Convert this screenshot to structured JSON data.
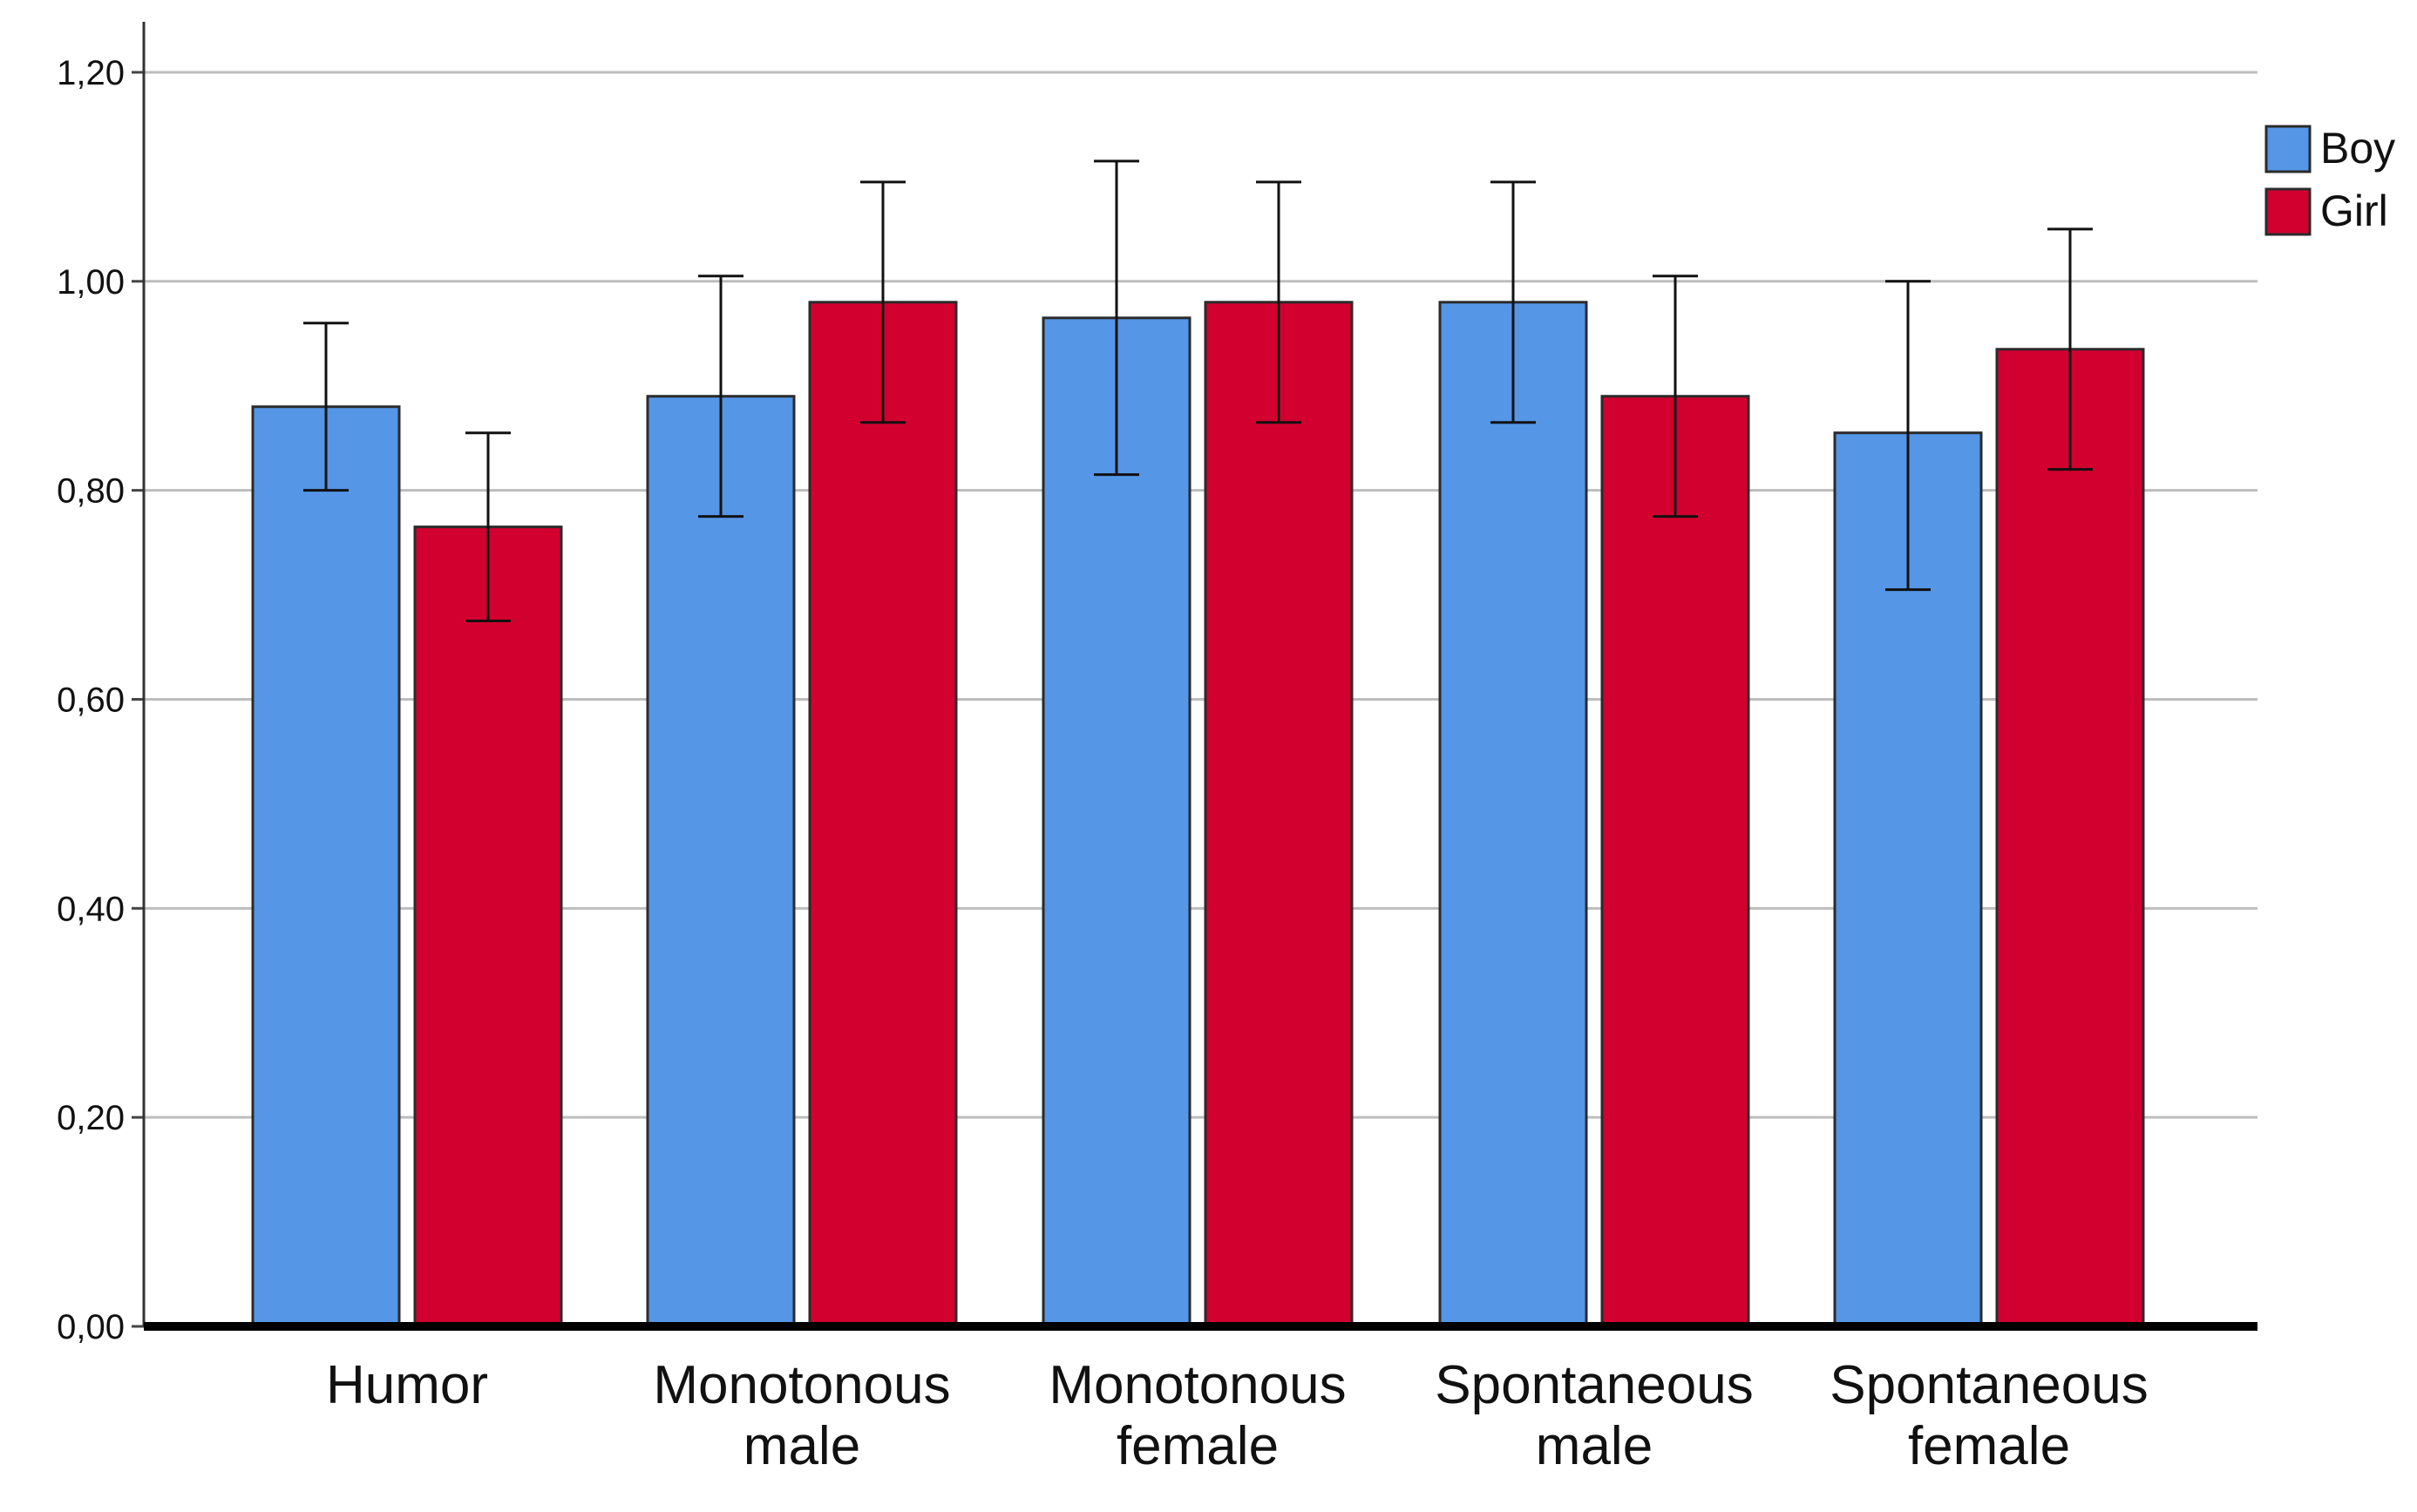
{
  "chart_data": {
    "type": "bar",
    "categories": [
      [
        "Humor"
      ],
      [
        "Monotonous",
        "male"
      ],
      [
        "Monotonous",
        "female"
      ],
      [
        "Spontaneous",
        "male"
      ],
      [
        "Spontaneous",
        "female"
      ]
    ],
    "series": [
      {
        "name": "Boy",
        "color": "#5596e6",
        "values": [
          0.88,
          0.89,
          0.965,
          0.98,
          0.855
        ],
        "error_low": [
          0.8,
          0.775,
          0.815,
          0.865,
          0.705
        ],
        "error_high": [
          0.96,
          1.005,
          1.115,
          1.095,
          1.0
        ]
      },
      {
        "name": "Girl",
        "color": "#d2002f",
        "values": [
          0.765,
          0.98,
          0.98,
          0.89,
          0.935
        ],
        "error_low": [
          0.675,
          0.865,
          0.865,
          0.775,
          0.82
        ],
        "error_high": [
          0.855,
          1.095,
          1.095,
          1.005,
          1.05
        ]
      }
    ],
    "y_ticks": [
      "0,00",
      "0,20",
      "0,40",
      "0,60",
      "0,80",
      "1,00",
      "1,20"
    ],
    "y_tick_values": [
      0,
      0.2,
      0.4,
      0.6,
      0.8,
      1.0,
      1.2
    ],
    "ylim": [
      0,
      1.24
    ],
    "grid": true,
    "legend_position": "top-right",
    "title": "",
    "xlabel": "",
    "ylabel": ""
  }
}
